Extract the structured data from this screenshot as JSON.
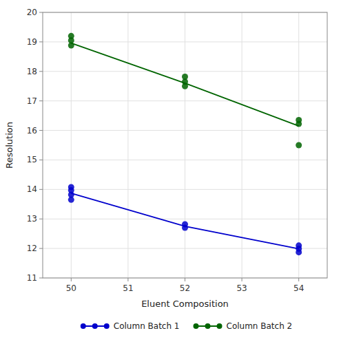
{
  "chart_data": {
    "type": "scatter",
    "xlabel": "Eluent Composition",
    "ylabel": "Resolution",
    "xlim": [
      49.5,
      54.5
    ],
    "ylim": [
      11,
      20
    ],
    "xticks": [
      50,
      51,
      52,
      53,
      54
    ],
    "yticks": [
      11,
      12,
      13,
      14,
      15,
      16,
      17,
      18,
      19,
      20
    ],
    "grid": true,
    "legend": "bottom",
    "series": [
      {
        "type": "line",
        "color": "#0000CC",
        "x": [
          50,
          52,
          54
        ],
        "values": [
          13.87,
          12.75,
          11.99
        ]
      },
      {
        "type": "scatter",
        "name": "Column Batch 1",
        "color": "#0000CC",
        "marker": "circle",
        "x": [
          50,
          50,
          50,
          50,
          52,
          52,
          54,
          54,
          54
        ],
        "values": [
          13.65,
          13.82,
          13.97,
          14.08,
          12.7,
          12.82,
          11.87,
          11.99,
          12.1
        ]
      },
      {
        "type": "line",
        "color": "#006400",
        "x": [
          50,
          52,
          54
        ],
        "values": [
          18.96,
          17.6,
          16.15
        ]
      },
      {
        "type": "scatter",
        "name": "Column Batch 2",
        "color": "#006400",
        "marker": "circle",
        "x": [
          50,
          50,
          50,
          52,
          52,
          52,
          54,
          54,
          54
        ],
        "values": [
          18.88,
          19.05,
          19.2,
          17.5,
          17.65,
          17.82,
          15.5,
          16.22,
          16.35
        ]
      }
    ]
  }
}
